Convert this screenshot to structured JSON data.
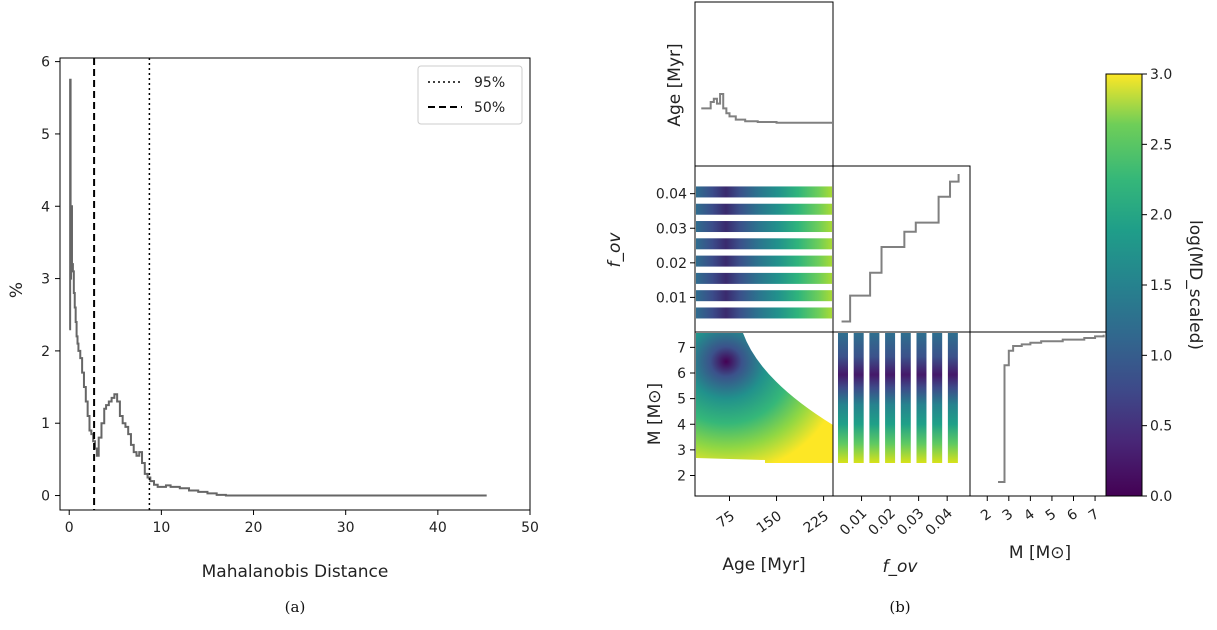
{
  "captions": {
    "a": "(a)",
    "b": "(b)"
  },
  "chart_data": [
    {
      "type": "line",
      "panel": "a",
      "xlabel": "Mahalanobis Distance",
      "ylabel": "%",
      "xlim": [
        -1,
        50
      ],
      "ylim": [
        -0.2,
        6.05
      ],
      "xticks": [
        "0",
        "10",
        "20",
        "30",
        "40",
        "50"
      ],
      "yticks": [
        "0",
        "1",
        "2",
        "3",
        "4",
        "5",
        "6"
      ],
      "series": [
        {
          "color": "#666666",
          "x": [
            0.0,
            0.1,
            0.15,
            0.2,
            0.3,
            0.4,
            0.5,
            0.6,
            0.7,
            0.8,
            0.9,
            1.0,
            1.2,
            1.4,
            1.6,
            1.8,
            2.0,
            2.2,
            2.4,
            2.6,
            2.8,
            3.0,
            3.2,
            3.5,
            3.8,
            4.0,
            4.3,
            4.6,
            4.9,
            5.2,
            5.5,
            5.8,
            6.1,
            6.4,
            6.7,
            7.0,
            7.3,
            7.6,
            7.9,
            8.2,
            8.5,
            8.8,
            9.2,
            9.6,
            10.0,
            10.5,
            11.0,
            12.0,
            13.0,
            14.0,
            15.0,
            16.0,
            17.0,
            20.0,
            25.0,
            30.0,
            35.0,
            40.0,
            45.3
          ],
          "y": [
            2.3,
            5.75,
            3.0,
            4.0,
            3.2,
            3.1,
            2.8,
            2.6,
            2.4,
            2.2,
            2.1,
            2.0,
            1.9,
            1.7,
            1.5,
            1.3,
            1.1,
            0.9,
            0.85,
            0.75,
            0.65,
            0.55,
            0.8,
            1.0,
            1.2,
            1.25,
            1.3,
            1.35,
            1.4,
            1.3,
            1.1,
            1.0,
            0.95,
            0.85,
            0.7,
            0.6,
            0.55,
            0.6,
            0.45,
            0.3,
            0.25,
            0.2,
            0.15,
            0.12,
            0.12,
            0.14,
            0.12,
            0.1,
            0.07,
            0.05,
            0.03,
            0.01,
            0.0,
            0.0,
            0.0,
            0.0,
            0.0,
            0.0,
            0.0
          ]
        }
      ],
      "vlines": [
        {
          "name": "95%",
          "x": 8.7,
          "style": "dotted"
        },
        {
          "name": "50%",
          "x": 2.7,
          "style": "dashed"
        }
      ],
      "legend": "top-right"
    },
    {
      "type": "heatmap",
      "panel": "b",
      "subtype": "corner plot",
      "colorbar": {
        "label": "log(MD_scaled)",
        "range": [
          0.0,
          3.0
        ],
        "ticks": [
          "0.0",
          "0.5",
          "1.0",
          "1.5",
          "2.0",
          "2.5",
          "3.0"
        ],
        "colormap": "viridis"
      },
      "variables": [
        {
          "label": "Age [Myr]",
          "ticks": [
            "75",
            "150",
            "225"
          ]
        },
        {
          "label": "f_ov",
          "ticks": [
            "0.01",
            "0.02",
            "0.03",
            "0.04"
          ]
        },
        {
          "label": "M [M⊙]",
          "ticks": [
            "2",
            "3",
            "4",
            "5",
            "6",
            "7"
          ]
        }
      ],
      "marginal_age": {
        "x": [
          30,
          45,
          50,
          55,
          60,
          65,
          70,
          75,
          85,
          100,
          120,
          150,
          180,
          210,
          240
        ],
        "y": [
          0.72,
          0.8,
          0.84,
          0.78,
          0.9,
          0.72,
          0.66,
          0.62,
          0.58,
          0.56,
          0.55,
          0.54,
          0.54,
          0.54,
          0.54
        ]
      },
      "marginal_fov": {
        "x": [
          0.003,
          0.006,
          0.009,
          0.013,
          0.017,
          0.021,
          0.025,
          0.029,
          0.033,
          0.037,
          0.041,
          0.044
        ],
        "y": [
          0.03,
          0.2,
          0.2,
          0.35,
          0.52,
          0.52,
          0.62,
          0.68,
          0.68,
          0.85,
          0.95,
          1.0
        ]
      },
      "marginal_mass": {
        "x": [
          2.5,
          2.8,
          3.0,
          3.2,
          3.6,
          4.0,
          4.5,
          5.0,
          5.5,
          6.0,
          6.5,
          7.0,
          7.4
        ],
        "y": [
          0.05,
          0.78,
          0.87,
          0.9,
          0.91,
          0.92,
          0.93,
          0.93,
          0.94,
          0.94,
          0.95,
          0.96,
          0.97
        ]
      }
    }
  ]
}
